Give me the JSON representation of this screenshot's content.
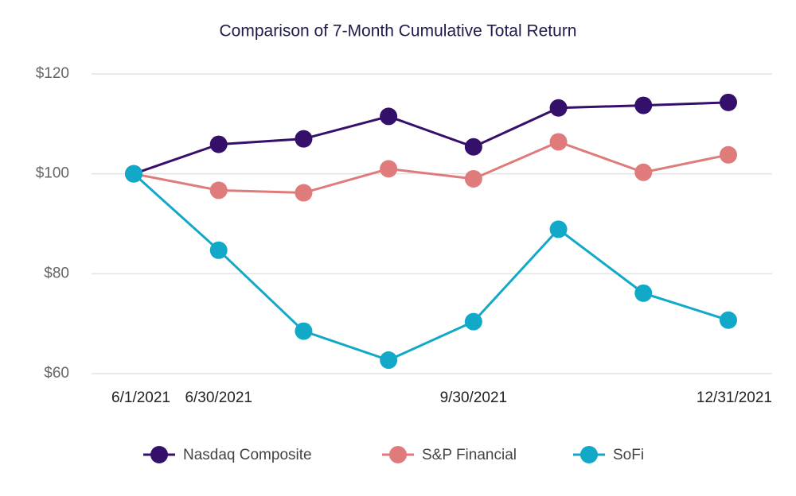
{
  "chart_data": {
    "type": "line",
    "title": "Comparison of 7-Month Cumulative Total Return",
    "categories": [
      "6/1/2021",
      "6/30/2021",
      null,
      null,
      "9/30/2021",
      null,
      null,
      "12/31/2021"
    ],
    "series": [
      {
        "name": "Nasdaq Composite",
        "color": "#34106b",
        "values": [
          100,
          105.9,
          107.0,
          111.5,
          105.4,
          113.2,
          113.7,
          114.3
        ]
      },
      {
        "name": "S&P Financial",
        "color": "#e07b7b",
        "values": [
          100,
          96.7,
          96.2,
          101.0,
          99.0,
          106.4,
          100.3,
          103.8
        ]
      },
      {
        "name": "SoFi",
        "color": "#12a9c9",
        "values": [
          100,
          84.7,
          68.5,
          62.7,
          70.4,
          88.9,
          76.1,
          70.7
        ]
      }
    ],
    "ylim": [
      60,
      120
    ],
    "yticks": [
      {
        "value": 60,
        "label": "$60"
      },
      {
        "value": 80,
        "label": "$80"
      },
      {
        "value": 100,
        "label": "$100"
      },
      {
        "value": 120,
        "label": "$120"
      }
    ],
    "grid": true
  }
}
